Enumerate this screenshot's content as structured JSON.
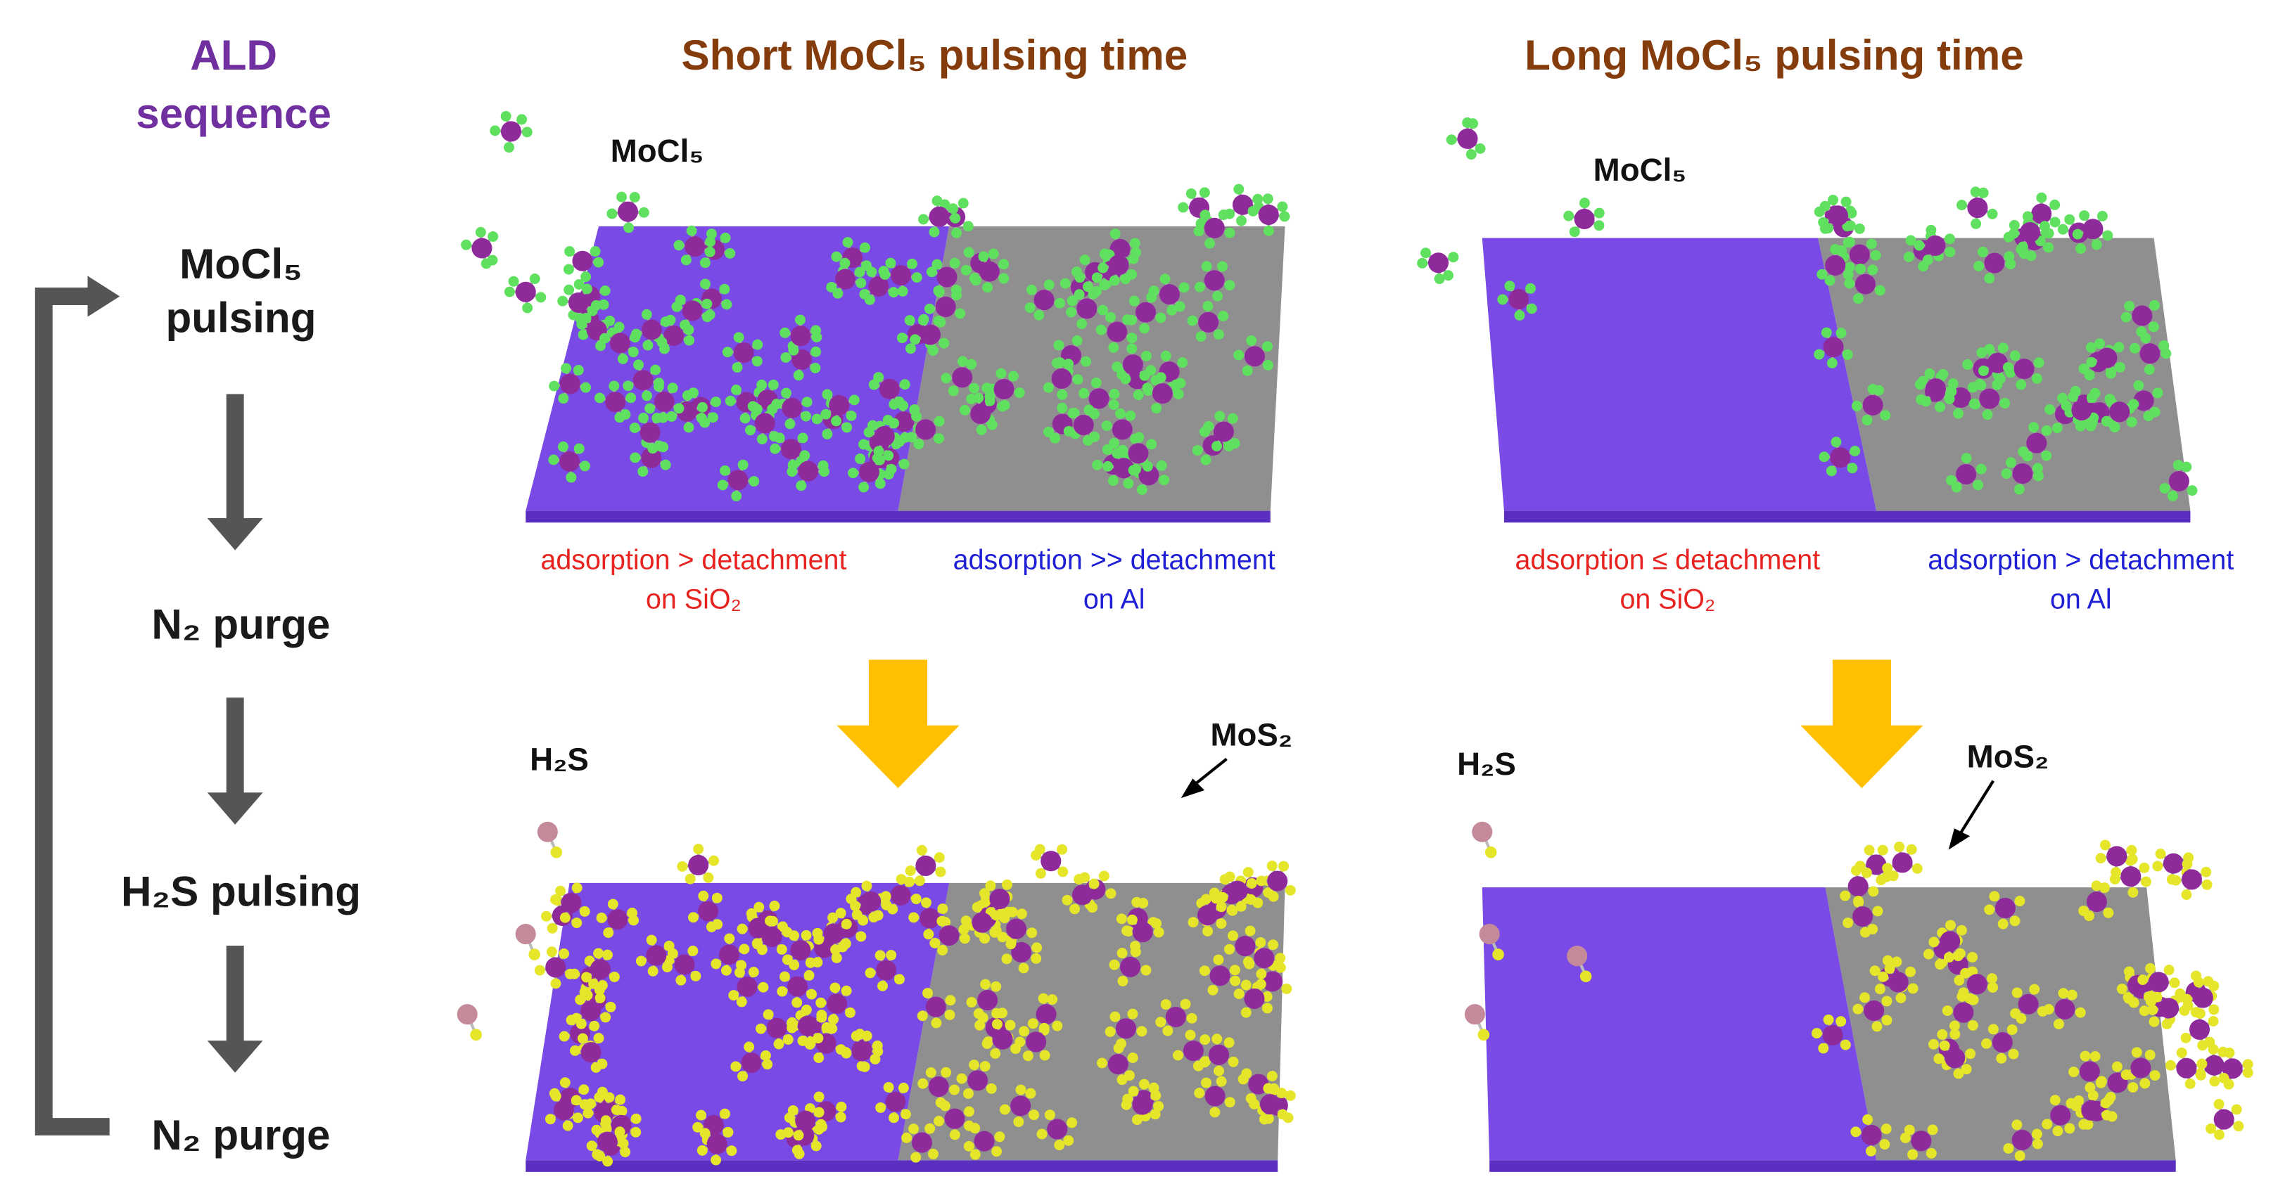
{
  "sequence": {
    "title": [
      "ALD",
      "sequence"
    ],
    "steps": [
      [
        "MoCl₅",
        "pulsing"
      ],
      [
        "N₂ purge"
      ],
      [
        "H₂S pulsing"
      ],
      [
        "N₂ purge"
      ]
    ]
  },
  "panels": [
    {
      "title": "Short MoCl₅ pulsing time",
      "precursor": "MoCl₅",
      "left_caption": [
        "adsorption > detachment",
        "on SiO₂"
      ],
      "right_caption": [
        "adsorption >> detachment",
        "on Al"
      ],
      "reactant": "H₂S",
      "product": "MoS₂"
    },
    {
      "title": "Long MoCl₅ pulsing time",
      "precursor": "MoCl₅",
      "left_caption": [
        "adsorption ≤ detachment",
        "on SiO₂"
      ],
      "right_caption": [
        "adsorption > detachment",
        "on Al"
      ],
      "reactant": "H₂S",
      "product": "MoS₂"
    }
  ]
}
